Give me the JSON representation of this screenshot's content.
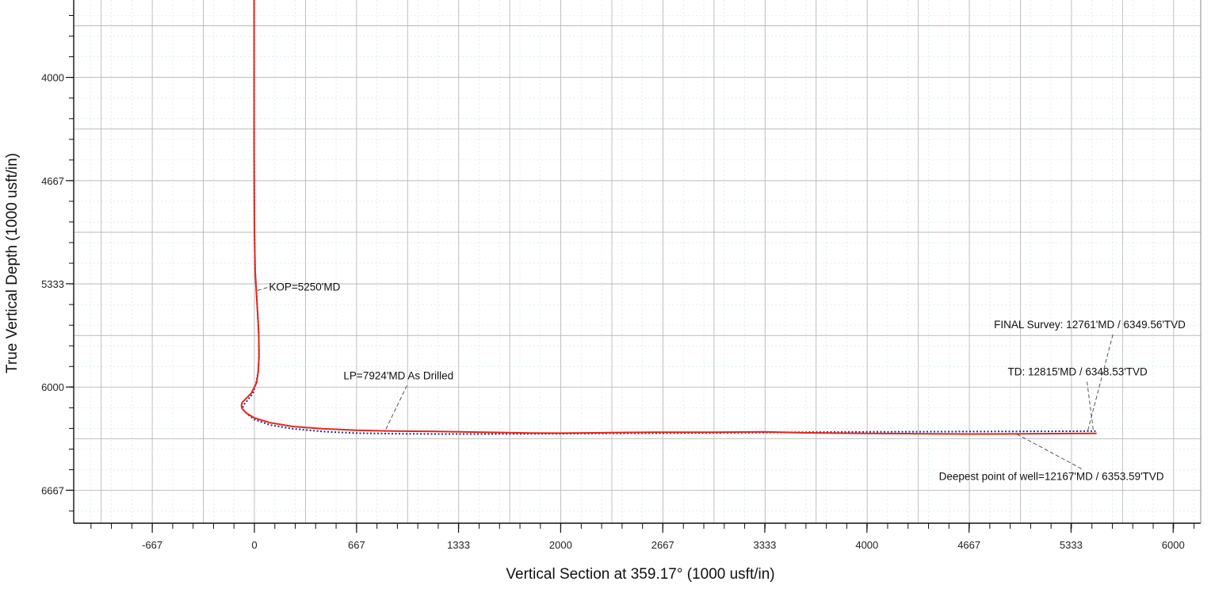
{
  "chart_data": {
    "type": "line",
    "xlabel": "Vertical Section at 359.17° (1000 usft/in)",
    "ylabel": "True Vertical Depth (1000 usft/in)",
    "x_ticks": [
      -667,
      0,
      667,
      1333,
      2000,
      2667,
      3333,
      4000,
      4667,
      5333,
      6000
    ],
    "y_ticks": [
      4000,
      4667,
      5333,
      6000,
      6667
    ],
    "xlim": [
      -1180,
      6180
    ],
    "ylim": [
      3500,
      6880
    ],
    "y_inverted": true,
    "grid": true,
    "colors": {
      "grid": "#cde5ee",
      "axis": "#111111",
      "actual": "#e8261c",
      "plan": "#1f2f9c",
      "leader": "#444444"
    },
    "series": [
      {
        "style": "solid",
        "x": [
          -2,
          -2,
          -2,
          0,
          5,
          20,
          28,
          30,
          25,
          15,
          -20,
          -60,
          -80,
          -85,
          -80,
          -50,
          0,
          100,
          250,
          450,
          667,
          900,
          1200,
          1500,
          1800,
          2000,
          2300,
          2600,
          3000,
          3333,
          3600,
          4000,
          4300,
          4667,
          5000,
          5333,
          5500
        ],
        "y": [
          3500,
          4000,
          4500,
          5000,
          5250,
          5500,
          5650,
          5800,
          5900,
          5970,
          6040,
          6080,
          6100,
          6120,
          6140,
          6170,
          6200,
          6230,
          6255,
          6270,
          6280,
          6285,
          6287,
          6292,
          6297,
          6298,
          6295,
          6292,
          6292,
          6290,
          6296,
          6300,
          6302,
          6304,
          6303,
          6301,
          6300
        ]
      },
      {
        "style": "dotted",
        "x": [
          -2,
          -2,
          -2,
          0,
          5,
          20,
          28,
          30,
          25,
          10,
          -10,
          -40,
          -65,
          -75,
          -70,
          -40,
          0,
          100,
          250,
          450,
          667,
          900,
          1200,
          1500,
          1800,
          2000,
          2300,
          2600,
          3000,
          3333,
          3600,
          4000,
          4300,
          4667,
          5000,
          5333,
          5500
        ],
        "y": [
          3500,
          4000,
          4500,
          5000,
          5250,
          5500,
          5650,
          5800,
          5900,
          5980,
          6040,
          6080,
          6110,
          6130,
          6150,
          6180,
          6210,
          6245,
          6270,
          6288,
          6298,
          6302,
          6304,
          6304,
          6303,
          6302,
          6300,
          6298,
          6296,
          6294,
          6292,
          6290,
          6289,
          6288,
          6287,
          6286,
          6285
        ]
      }
    ],
    "annotations": [
      {
        "text": "KOP=5250'MD",
        "x": 95,
        "y": 5378,
        "target_x": 15,
        "target_y": 5378
      },
      {
        "text": "LP=7924'MD As Drilled",
        "x": 582,
        "y": 5950,
        "target_x": 850,
        "target_y": 6290
      },
      {
        "text": "FINAL Survey: 12761'MD / 6349.56'TVD",
        "x": 4830,
        "y": 5620,
        "target_x": 5440,
        "target_y": 6292
      },
      {
        "text": "TD: 12815'MD / 6348.53'TVD",
        "x": 4920,
        "y": 5925,
        "target_x": 5480,
        "target_y": 6292
      },
      {
        "text": "Deepest point of well=12167'MD / 6353.59'TVD",
        "x": 4470,
        "y": 6600,
        "target_x": 4980,
        "target_y": 6305
      }
    ]
  }
}
